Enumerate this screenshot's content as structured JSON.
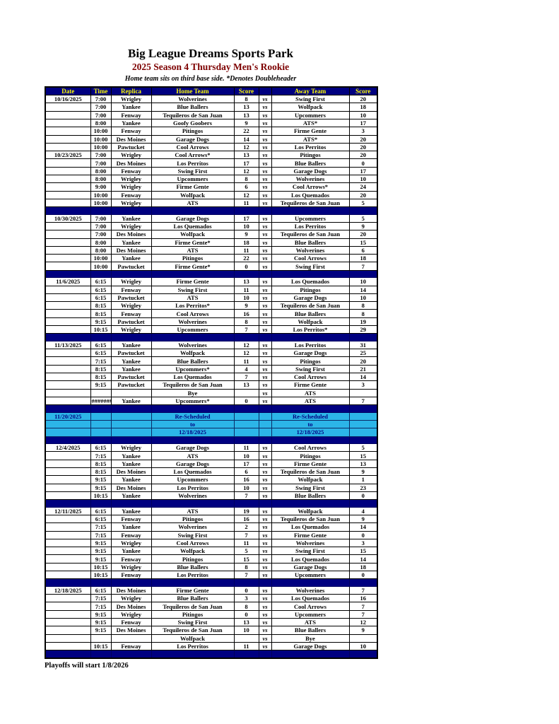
{
  "header": {
    "title": "Big League Dreams Sports Park",
    "subtitle": "2025 Season 4 Thursday Men's Rookie",
    "note": "Home team sits on third base side.  *Denotes Doubleheader"
  },
  "footer": {
    "playoffs_note": "Playoffs will start 1/8/2026"
  },
  "colors": {
    "header_navy": "#000080",
    "header_text_yellow": "#ffff00",
    "winner_highlight_yellow": "#ffff00",
    "rescheduled_blue": "#2cb5e8",
    "subtitle_dark_red": "#7d0000"
  },
  "table": {
    "columns": [
      "Date",
      "Time",
      "Replica",
      "Home Team",
      "Score",
      "",
      "Away Team",
      "Score"
    ],
    "vs_label": "vs",
    "rows": [
      {
        "date": "10/16/2025",
        "time": "7:00",
        "replica": "Wrigley",
        "home": "Wolverines",
        "hscore": "8",
        "away": "Swing First",
        "ascore": "20",
        "awin": true
      },
      {
        "time": "7:00",
        "replica": "Yankee",
        "home": "Blue Ballers",
        "hscore": "13",
        "away": "Wolfpack",
        "ascore": "18",
        "awin": true
      },
      {
        "time": "7:00",
        "replica": "Fenway",
        "home": "Tequileros de San Juan",
        "hscore": "13",
        "away": "Upcommers",
        "ascore": "10",
        "hwin": true
      },
      {
        "time": "8:00",
        "replica": "Yankee",
        "home": "Goofy Goobers",
        "hscore": "9",
        "away": "ATS*",
        "ascore": "17",
        "awin": true
      },
      {
        "time": "10:00",
        "replica": "Fenway",
        "home": "Pitingos",
        "hscore": "22",
        "away": "Firme Gente",
        "ascore": "3",
        "hwin": true
      },
      {
        "time": "10:00",
        "replica": "Des Moines",
        "home": "Garage Dogs",
        "hscore": "14",
        "away": "ATS*",
        "ascore": "20",
        "awin": true
      },
      {
        "time": "10:00",
        "replica": "Pawtucket",
        "home": "Cool Arrows",
        "hscore": "12",
        "away": "Los Perritos",
        "ascore": "20",
        "awin": true
      },
      {
        "date": "10/23/2025",
        "time": "7:00",
        "replica": "Wrigley",
        "home": "Cool Arrows*",
        "hscore": "13",
        "away": "Pitingos",
        "ascore": "20",
        "awin": true
      },
      {
        "time": "7:00",
        "replica": "Des Moines",
        "home": "Los Perritos",
        "hscore": "17",
        "away": "Blue Ballers",
        "ascore": "0",
        "hwin": true
      },
      {
        "time": "8:00",
        "replica": "Fenway",
        "home": "Swing First",
        "hscore": "12",
        "away": "Garage Dogs",
        "ascore": "17",
        "awin": true
      },
      {
        "time": "8:00",
        "replica": "Wrigley",
        "home": "Upcommers",
        "hscore": "8",
        "away": "Wolverines",
        "ascore": "10",
        "awin": true
      },
      {
        "time": "9:00",
        "replica": "Wrigley",
        "home": "Firme Gente",
        "hscore": "6",
        "away": "Cool Arrows*",
        "ascore": "24",
        "awin": true
      },
      {
        "time": "10:00",
        "replica": "Fenway",
        "home": "Wolfpack",
        "hscore": "12",
        "away": "Los Quemados",
        "ascore": "20",
        "awin": true
      },
      {
        "time": "10:00",
        "replica": "Wrigley",
        "home": "ATS",
        "hscore": "11",
        "away": "Tequileros de San Juan",
        "ascore": "5",
        "hwin": true
      },
      {
        "type": "sep"
      },
      {
        "date": "10/30/2025",
        "time": "7:00",
        "replica": "Yankee",
        "home": "Garage Dogs",
        "hscore": "17",
        "away": "Upcommers",
        "ascore": "5",
        "hwin": true
      },
      {
        "time": "7:00",
        "replica": "Wrigley",
        "home": "Los Quemados",
        "hscore": "10",
        "away": "Los Perritos",
        "ascore": "9",
        "hwin": true
      },
      {
        "time": "7:00",
        "replica": "Des Moines",
        "home": "Wolfpack",
        "hscore": "9",
        "away": "Tequileros de San Juan",
        "ascore": "20",
        "awin": true
      },
      {
        "time": "8:00",
        "replica": "Yankee",
        "home": "Firme Gente*",
        "hscore": "18",
        "away": "Blue Ballers",
        "ascore": "15",
        "hwin": true
      },
      {
        "time": "8:00",
        "replica": "Des Moines",
        "home": "ATS",
        "hscore": "11",
        "away": "Wolverines",
        "ascore": "6",
        "hwin": true
      },
      {
        "time": "10:00",
        "replica": "Yankee",
        "home": "Pitingos",
        "hscore": "22",
        "away": "Cool Arrows",
        "ascore": "18",
        "hwin": true
      },
      {
        "time": "10:00",
        "replica": "Pawtucket",
        "home": "Firme Gente*",
        "hscore": "0",
        "away": "Swing First",
        "ascore": "7",
        "awin": true
      },
      {
        "type": "sep"
      },
      {
        "date": "11/6/2025",
        "time": "6:15",
        "replica": "Wrigley",
        "home": "Firme Gente",
        "hscore": "13",
        "away": "Los Quemados",
        "ascore": "10",
        "hwin": true
      },
      {
        "time": "6:15",
        "replica": "Fenway",
        "home": "Swing First",
        "hscore": "11",
        "away": "Pitingos",
        "ascore": "14",
        "awin": true
      },
      {
        "time": "6:15",
        "replica": "Pawtucket",
        "home": "ATS",
        "hscore": "10",
        "away": "Garage Dogs",
        "ascore": "10",
        "hwin": true,
        "awin": true
      },
      {
        "time": "8:15",
        "replica": "Wrigley",
        "home": "Los Perritos*",
        "hscore": "9",
        "away": "Tequileros de San Juan",
        "ascore": "8",
        "hwin": true
      },
      {
        "time": "8:15",
        "replica": "Fenway",
        "home": "Cool Arrows",
        "hscore": "16",
        "away": "Blue Ballers",
        "ascore": "8",
        "hwin": true
      },
      {
        "time": "9:15",
        "replica": "Pawtucket",
        "home": "Wolverines",
        "hscore": "8",
        "away": "Wolfpack",
        "ascore": "19",
        "awin": true
      },
      {
        "time": "10:15",
        "replica": "Wrigley",
        "home": "Upcommers",
        "hscore": "7",
        "away": "Los Perritos*",
        "ascore": "29",
        "awin": true
      },
      {
        "type": "sep"
      },
      {
        "date": "11/13/2025",
        "time": "6:15",
        "replica": "Yankee",
        "home": "Wolverines",
        "hscore": "12",
        "away": "Los Perritos",
        "ascore": "31",
        "awin": true
      },
      {
        "time": "6:15",
        "replica": "Pawtucket",
        "home": "Wolfpack",
        "hscore": "12",
        "away": "Garage Dogs",
        "ascore": "25",
        "awin": true
      },
      {
        "time": "7:15",
        "replica": "Yankee",
        "home": "Blue Ballers",
        "hscore": "11",
        "away": "Pitingos",
        "ascore": "20",
        "awin": true
      },
      {
        "time": "8:15",
        "replica": "Yankee",
        "home": "Upcommers*",
        "hscore": "4",
        "away": "Swing First",
        "ascore": "21",
        "awin": true
      },
      {
        "time": "8:15",
        "replica": "Pawtucket",
        "home": "Los Quemados",
        "hscore": "7",
        "away": "Cool Arrows",
        "ascore": "14",
        "awin": true
      },
      {
        "time": "9:15",
        "replica": "Pawtucket",
        "home": "Tequileros de San Juan",
        "hscore": "13",
        "away": "Firme Gente",
        "ascore": "3",
        "hwin": true
      },
      {
        "home": "Bye",
        "away": "ATS"
      },
      {
        "time": "#######",
        "replica": "Yankee",
        "home": "Upcommers*",
        "hscore": "0",
        "away": "ATS",
        "ascore": "7",
        "awin": true
      },
      {
        "type": "sep"
      },
      {
        "type": "info",
        "date": "11/20/2025",
        "text": "Re-Scheduled"
      },
      {
        "type": "info",
        "text": "to"
      },
      {
        "type": "info",
        "text": "12/18/2025"
      },
      {
        "type": "sep"
      },
      {
        "date": "12/4/2025",
        "time": "6:15",
        "replica": "Wrigley",
        "home": "Garage Dogs",
        "hscore": "11",
        "away": "Cool Arrows",
        "ascore": "5",
        "hwin": true
      },
      {
        "time": "7:15",
        "replica": "Yankee",
        "home": "ATS",
        "hscore": "10",
        "away": "Pitingos",
        "ascore": "15",
        "awin": true
      },
      {
        "time": "8:15",
        "replica": "Yankee",
        "home": "Garage Dogs",
        "hscore": "17",
        "away": "Firme Gente",
        "ascore": "13",
        "hwin": true
      },
      {
        "time": "8:15",
        "replica": "Des Moines",
        "home": "Los Quemados",
        "hscore": "6",
        "away": "Tequileros de San Juan",
        "ascore": "9",
        "awin": true
      },
      {
        "time": "9:15",
        "replica": "Yankee",
        "home": "Upcommers",
        "hscore": "16",
        "away": "Wolfpack",
        "ascore": "1",
        "hwin": true
      },
      {
        "time": "9:15",
        "replica": "Des Moines",
        "home": "Los Perritos",
        "hscore": "10",
        "away": "Swing First",
        "ascore": "23",
        "awin": true
      },
      {
        "time": "10:15",
        "replica": "Yankee",
        "home": "Wolverines",
        "hscore": "7",
        "away": "Blue Ballers",
        "ascore": "0",
        "hwin": true
      },
      {
        "type": "sep"
      },
      {
        "date": "12/11/2025",
        "time": "6:15",
        "replica": "Yankee",
        "home": "ATS",
        "hscore": "19",
        "away": "Wolfpack",
        "ascore": "4",
        "hwin": true
      },
      {
        "time": "6:15",
        "replica": "Fenway",
        "home": "Pitingos",
        "hscore": "16",
        "away": "Tequileros de San Juan",
        "ascore": "9",
        "hwin": true
      },
      {
        "time": "7:15",
        "replica": "Yankee",
        "home": "Wolverines",
        "hscore": "2",
        "away": "Los Quemados",
        "ascore": "14",
        "awin": true
      },
      {
        "time": "7:15",
        "replica": "Fenway",
        "home": "Swing First",
        "hscore": "7",
        "away": "Firme Gente",
        "ascore": "0",
        "hwin": true
      },
      {
        "time": "9:15",
        "replica": "Wrigley",
        "home": "Cool Arrows",
        "hscore": "11",
        "away": "Wolverines",
        "ascore": "3",
        "hwin": true
      },
      {
        "time": "9:15",
        "replica": "Yankee",
        "home": "Wolfpack",
        "hscore": "5",
        "away": "Swing First",
        "ascore": "15",
        "awin": true
      },
      {
        "time": "9:15",
        "replica": "Fenway",
        "home": "Pitingos",
        "hscore": "15",
        "away": "Los Quemados",
        "ascore": "14",
        "hwin": true
      },
      {
        "time": "10:15",
        "replica": "Wrigley",
        "home": "Blue Ballers",
        "hscore": "8",
        "away": "Garage Dogs",
        "ascore": "18",
        "awin": true
      },
      {
        "time": "10:15",
        "replica": "Fenway",
        "home": "Los Perritos",
        "hscore": "7",
        "away": "Upcommers",
        "ascore": "0",
        "hwin": true
      },
      {
        "type": "sep"
      },
      {
        "date": "12/18/2025",
        "time": "6:15",
        "replica": "Des Moines",
        "home": "Firme Gente",
        "hscore": "0",
        "away": "Wolverines",
        "ascore": "7",
        "awin": true
      },
      {
        "time": "7:15",
        "replica": "Wrigley",
        "home": "Blue Ballers",
        "hscore": "3",
        "away": "Los Quemados",
        "ascore": "16",
        "awin": true
      },
      {
        "time": "7:15",
        "replica": "Des Moines",
        "home": "Tequileros de San Juan",
        "hscore": "8",
        "away": "Cool Arrows",
        "ascore": "7",
        "hwin": true
      },
      {
        "time": "9:15",
        "replica": "Wrigley",
        "home": "Pitingos",
        "hscore": "0",
        "away": "Upcommers",
        "ascore": "7",
        "awin": true
      },
      {
        "time": "9:15",
        "replica": "Fenway",
        "home": "Swing First",
        "hscore": "13",
        "away": "ATS",
        "ascore": "12",
        "hwin": true
      },
      {
        "time": "9:15",
        "replica": "Des Moines",
        "home": "Tequileros de San Juan",
        "hscore": "10",
        "away": "Blue Ballers",
        "ascore": "9",
        "hwin": true
      },
      {
        "home": "Wolfpack",
        "away": "Bye"
      },
      {
        "time": "10:15",
        "replica": "Fenway",
        "home": "Los Perritos",
        "hscore": "11",
        "away": "Garage Dogs",
        "ascore": "10",
        "hwin": true
      },
      {
        "type": "sep"
      }
    ]
  }
}
